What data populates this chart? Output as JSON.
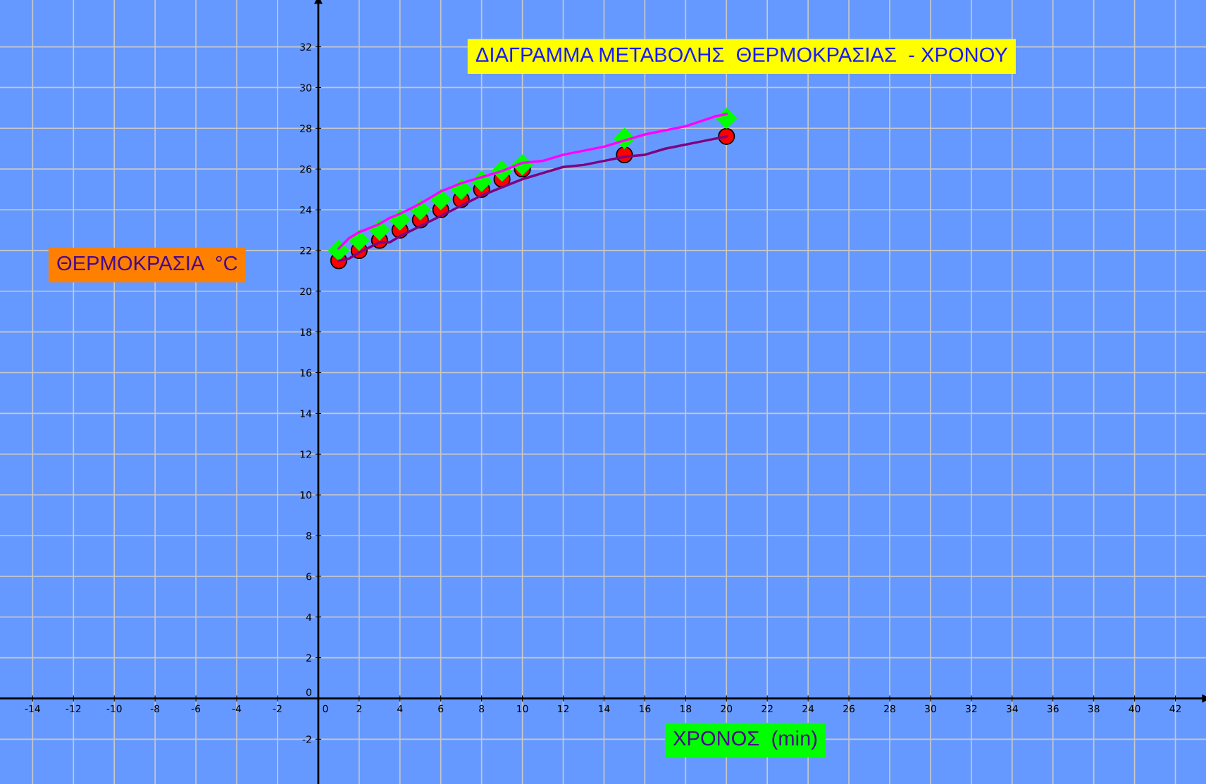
{
  "chart_data": {
    "type": "scatter",
    "title": "ΔΙΑΓΡΑΜΜΑ ΜΕΤΑΒΟΛΗΣ  ΘΕΡΜΟΚΡΑΣΙΑΣ  - ΧΡΟΝΟΥ",
    "xlabel": "ΧΡΟΝΟΣ  (min)",
    "ylabel": "ΘΕΡΜΟΚΡΑΣΙΑ  °C",
    "series": [
      {
        "type": "line",
        "color": "#ff00ff",
        "marker": "none",
        "x": [
          1,
          1.5,
          2,
          3,
          3.5,
          4,
          5,
          6,
          7,
          8,
          9,
          10,
          11,
          12,
          14,
          15,
          16,
          18,
          19.5,
          20
        ],
        "values": [
          22.1,
          22.6,
          22.9,
          23.3,
          23.6,
          23.8,
          24.3,
          24.9,
          25.3,
          25.6,
          25.9,
          26.3,
          26.4,
          26.7,
          27.1,
          27.4,
          27.7,
          28.1,
          28.6,
          28.7
        ]
      },
      {
        "type": "line",
        "color": "#800080",
        "marker": "none",
        "x": [
          1,
          1.5,
          2,
          3,
          3.5,
          4,
          5,
          6,
          7,
          8,
          9,
          10,
          11,
          12,
          13,
          14,
          15,
          16,
          17,
          19,
          20
        ],
        "values": [
          21.5,
          21.6,
          21.9,
          22.4,
          22.4,
          22.7,
          23.2,
          23.7,
          24.2,
          24.7,
          25.1,
          25.5,
          25.8,
          26.1,
          26.2,
          26.4,
          26.6,
          26.7,
          27.0,
          27.4,
          27.6
        ]
      },
      {
        "color": "#ff0000",
        "marker": "circle",
        "x": [
          1,
          2,
          3,
          4,
          5,
          6,
          7,
          8,
          9,
          10,
          15,
          20
        ],
        "values": [
          21.5,
          22,
          22.5,
          23,
          23.5,
          24,
          24.5,
          25,
          25.5,
          26,
          26.7,
          27.6
        ]
      },
      {
        "color": "#00ff00",
        "marker": "diamond",
        "x": [
          1,
          2,
          3,
          4,
          5,
          6,
          7,
          8,
          9,
          10,
          15,
          20
        ],
        "values": [
          22,
          22.5,
          23,
          23.5,
          24,
          24.5,
          25,
          25.4,
          25.9,
          26.2,
          27.5,
          28.5
        ]
      }
    ],
    "xlim": [
      -15.6,
      43.5
    ],
    "ylim": [
      -4.2,
      34.3
    ],
    "xticks": [
      -14,
      -12,
      -10,
      -8,
      -6,
      -4,
      -2,
      0,
      2,
      4,
      6,
      8,
      10,
      12,
      14,
      16,
      18,
      20,
      22,
      24,
      26,
      28,
      30,
      32,
      34,
      36,
      38,
      40,
      42
    ],
    "yticks": [
      -2,
      0,
      2,
      4,
      6,
      8,
      10,
      12,
      14,
      16,
      18,
      20,
      22,
      24,
      26,
      28,
      30,
      32
    ],
    "grid": true,
    "legend": false
  }
}
